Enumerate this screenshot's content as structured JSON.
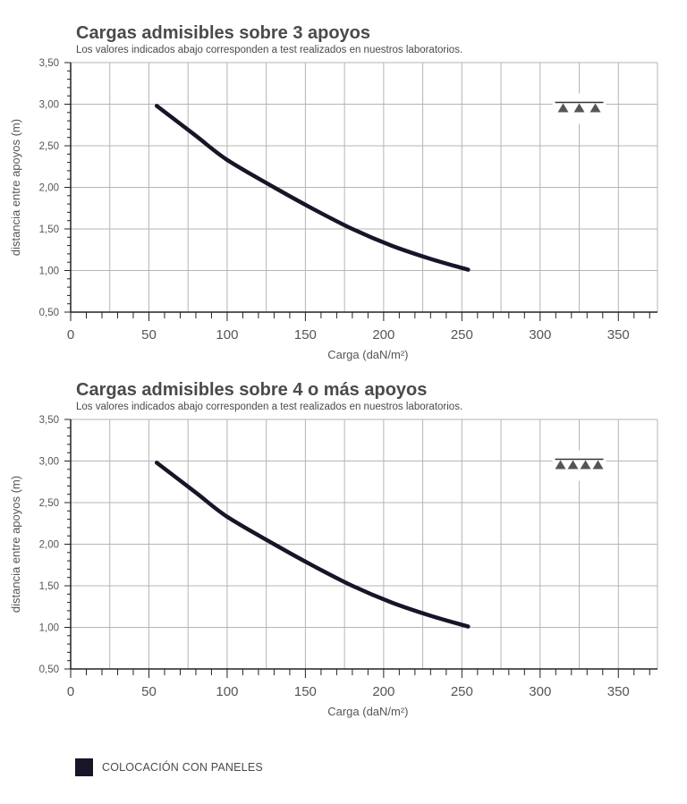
{
  "chart_data": [
    {
      "type": "line",
      "title": "Cargas admisibles sobre 3 apoyos",
      "subtitle": "Los valores indicados abajo corresponden a test realizados en nuestros laboratorios.",
      "xlabel": "Carga (daN/m²)",
      "ylabel": "distancia entre apoyos (m)",
      "xlim": [
        0,
        375
      ],
      "ylim": [
        0.5,
        3.5
      ],
      "xticks": [
        "0",
        "50",
        "100",
        "150",
        "200",
        "250",
        "300",
        "350"
      ],
      "yticks": [
        "0,50",
        "1,00",
        "1,50",
        "2,00",
        "2,50",
        "3,00",
        "3,50"
      ],
      "grid": true,
      "supports_icon": "three-supports-icon",
      "supports_count": 3,
      "series": [
        {
          "color": "#171527",
          "x": [
            55,
            80,
            100,
            130,
            155,
            180,
            205,
            230,
            254
          ],
          "y": [
            2.98,
            2.62,
            2.33,
            2.0,
            1.74,
            1.5,
            1.3,
            1.14,
            1.01
          ]
        }
      ]
    },
    {
      "type": "line",
      "title": "Cargas admisibles sobre 4 o más apoyos",
      "subtitle": "Los valores indicados abajo corresponden a test realizados en nuestros laboratorios.",
      "xlabel": "Carga (daN/m²)",
      "ylabel": "distancia entre apoyos (m)",
      "xlim": [
        0,
        375
      ],
      "ylim": [
        0.5,
        3.5
      ],
      "xticks": [
        "0",
        "50",
        "100",
        "150",
        "200",
        "250",
        "300",
        "350"
      ],
      "yticks": [
        "0,50",
        "1,00",
        "1,50",
        "2,00",
        "2,50",
        "3,00",
        "3,50"
      ],
      "grid": true,
      "supports_icon": "four-supports-icon",
      "supports_count": 4,
      "series": [
        {
          "color": "#171527",
          "x": [
            55,
            80,
            100,
            130,
            155,
            180,
            205,
            230,
            254
          ],
          "y": [
            2.98,
            2.62,
            2.33,
            2.0,
            1.74,
            1.5,
            1.3,
            1.14,
            1.01
          ]
        }
      ]
    }
  ],
  "legend": {
    "label": "COLOCACIÓN CON PANELES",
    "color": "#171527"
  }
}
